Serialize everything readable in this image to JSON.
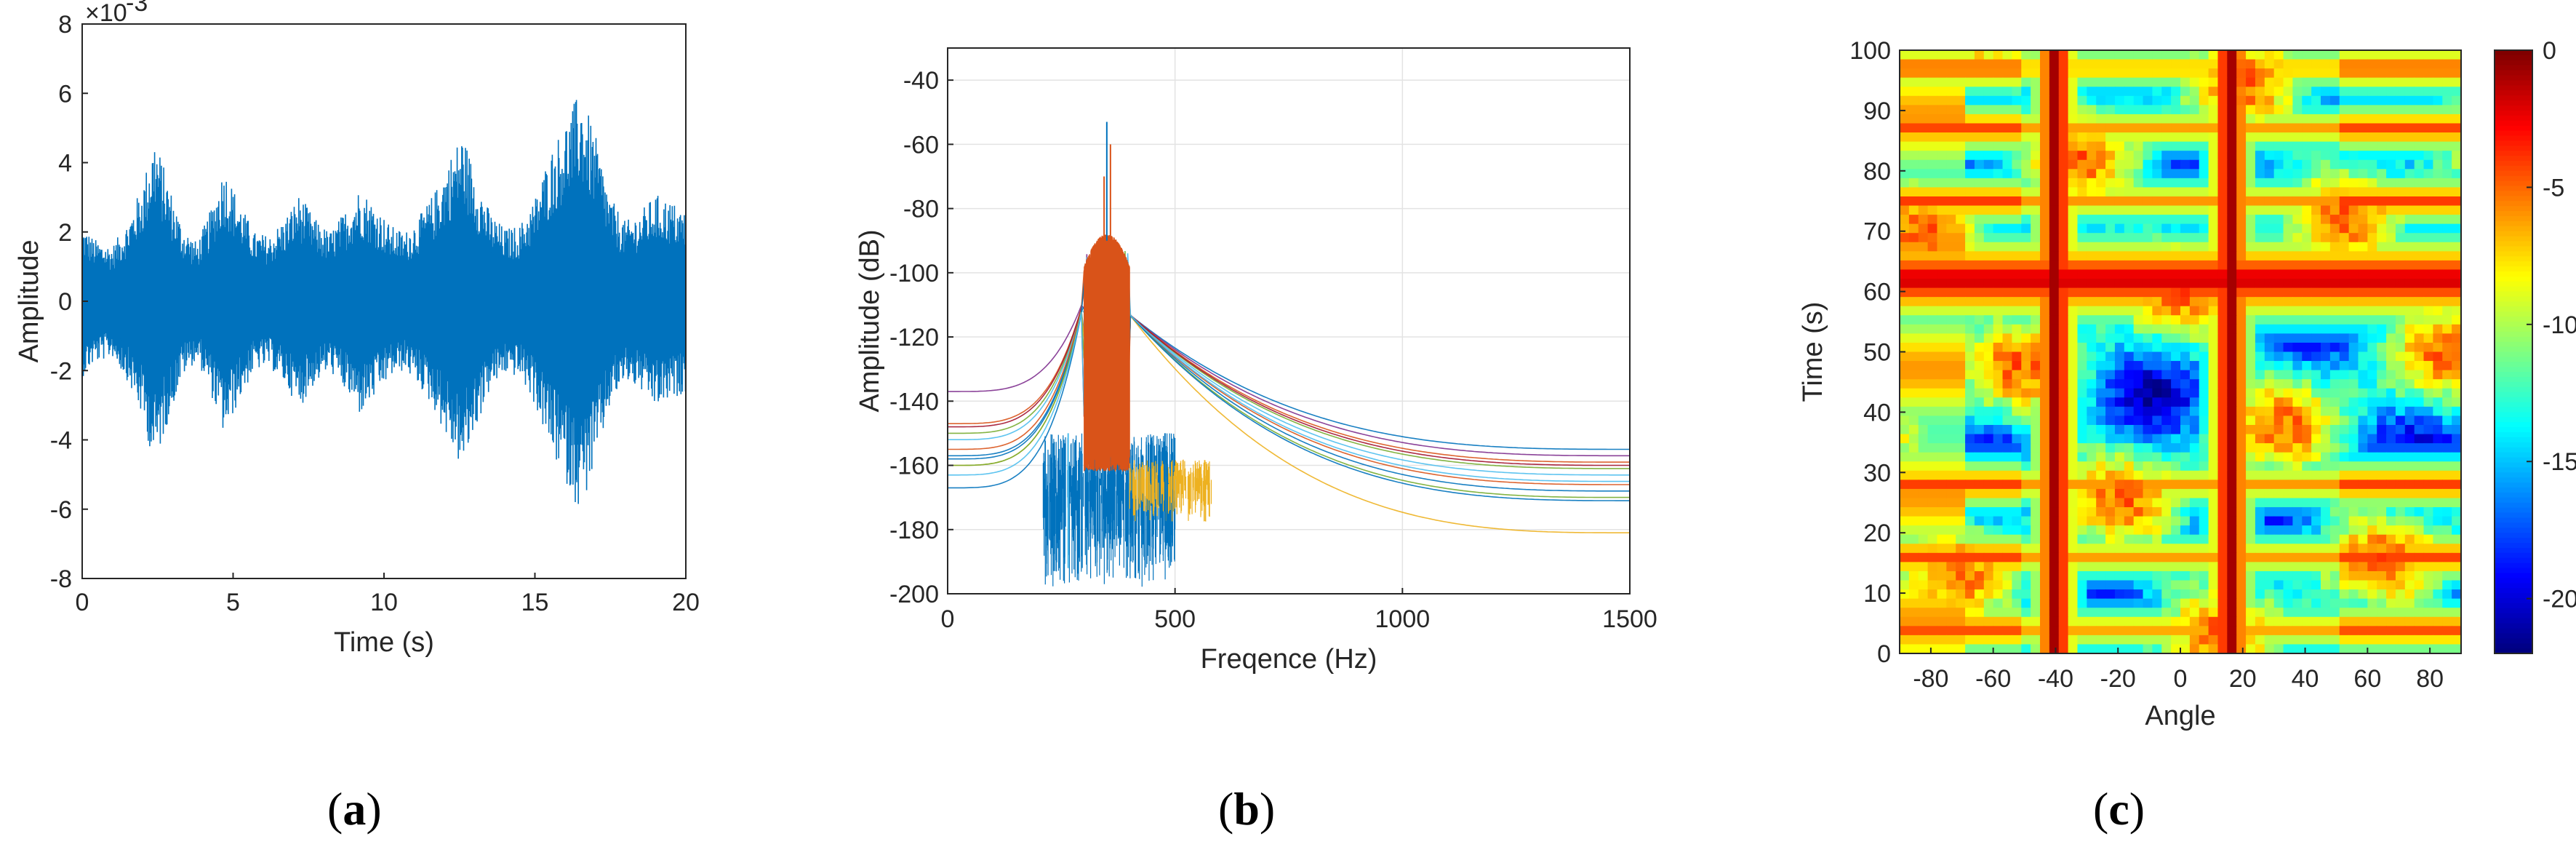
{
  "colors": {
    "signal": "#0072bd",
    "orange": "#d95319",
    "yellow": "#edb120",
    "purple": "#7e2f8e",
    "green": "#77ac30",
    "cyan": "#4dbeee",
    "red": "#a2142f"
  },
  "captions": {
    "a": {
      "open": "(",
      "letter": "a",
      "close": ")"
    },
    "b": {
      "open": "(",
      "letter": "b",
      "close": ")"
    },
    "c": {
      "open": "(",
      "letter": "c",
      "close": ")"
    }
  },
  "chart_data": [
    {
      "type": "line",
      "xlabel": "Time (s)",
      "ylabel": "Amplitude",
      "exponent_label": "×10",
      "exponent_power": "-3",
      "xlim": [
        0,
        20
      ],
      "ylim": [
        -8,
        8
      ],
      "xticks": [
        "0",
        "5",
        "10",
        "15",
        "20"
      ],
      "yticks": [
        "8",
        "6",
        "4",
        "2",
        "0",
        "-2",
        "-4",
        "-6",
        "-8"
      ],
      "grid": false,
      "envelope": {
        "t": [
          0,
          0.4,
          1.0,
          1.5,
          2.0,
          2.4,
          2.8,
          3.3,
          3.8,
          4.2,
          4.7,
          5.2,
          5.7,
          6.2,
          6.7,
          7.2,
          7.7,
          8.2,
          8.7,
          9.2,
          9.7,
          10.2,
          10.7,
          11.2,
          11.7,
          12.2,
          12.6,
          13.0,
          13.5,
          14.0,
          14.5,
          15.0,
          15.5,
          16.0,
          16.5,
          17.0,
          17.5,
          18.0,
          18.5,
          19.0,
          19.5,
          20.0
        ],
        "amp": [
          2.2,
          1.8,
          1.6,
          2.3,
          3.4,
          4.8,
          3.6,
          2.2,
          1.7,
          2.5,
          3.9,
          2.9,
          2.0,
          1.9,
          2.4,
          3.1,
          2.4,
          2.0,
          2.6,
          3.3,
          2.8,
          2.2,
          2.0,
          2.5,
          3.2,
          4.2,
          4.9,
          3.8,
          2.6,
          2.1,
          2.2,
          3.0,
          4.3,
          5.2,
          6.1,
          4.8,
          3.0,
          2.3,
          2.6,
          3.1,
          2.9,
          2.6
        ],
        "units": "1e-3"
      }
    },
    {
      "type": "line",
      "xlabel": "Freqence (Hz)",
      "ylabel": "Amplitude (dB)",
      "xlim": [
        0,
        1500
      ],
      "ylim": [
        -200,
        -30
      ],
      "xticks": [
        "0",
        "500",
        "1000",
        "1500"
      ],
      "yticks": [
        "-40",
        "-60",
        "-80",
        "-100",
        "-120",
        "-140",
        "-160",
        "-180",
        "-200"
      ],
      "grid": true,
      "peak": {
        "freq_hz": 350,
        "max_db": -53,
        "band_top_db": -88,
        "band_hz": [
          300,
          400
        ]
      },
      "series": [
        {
          "color": "#0072bd",
          "start_db": -157,
          "end_db": -155
        },
        {
          "color": "#7e2f8e",
          "start_db": -137,
          "end_db": -157
        },
        {
          "color": "#d95319",
          "start_db": -147,
          "end_db": -159
        },
        {
          "color": "#77ac30",
          "start_db": -150,
          "end_db": -161
        },
        {
          "color": "#4dbeee",
          "start_db": -152,
          "end_db": -163
        },
        {
          "color": "#a2142f",
          "start_db": -148,
          "end_db": -160
        },
        {
          "color": "#0072bd",
          "start_db": -158,
          "end_db": -168
        },
        {
          "color": "#d95319",
          "start_db": -155,
          "end_db": -166
        },
        {
          "color": "#edb120",
          "start_db": -160,
          "end_db": -181
        },
        {
          "color": "#77ac30",
          "start_db": -160,
          "end_db": -170
        },
        {
          "color": "#0072bd",
          "start_db": -167,
          "end_db": -171
        },
        {
          "color": "#4dbeee",
          "start_db": -163,
          "end_db": -165
        }
      ]
    },
    {
      "type": "heatmap",
      "xlabel": "Angle",
      "ylabel": "Time (s)",
      "xlim": [
        -90,
        90
      ],
      "ylim": [
        0,
        100
      ],
      "xticks": [
        "-80",
        "-60",
        "-40",
        "-20",
        "0",
        "20",
        "40",
        "60",
        "80"
      ],
      "yticks": [
        "100",
        "90",
        "80",
        "70",
        "60",
        "50",
        "40",
        "30",
        "20",
        "10",
        "0"
      ],
      "colorbar": {
        "min": -22,
        "max": 0,
        "ticks": [
          "0",
          "-5",
          "-10",
          "-15",
          "-20"
        ],
        "colormap": "jet"
      },
      "strong_angles_deg": [
        -40,
        16
      ],
      "strong_time_s": 62,
      "secondary_times_s": [
        4,
        16,
        28,
        75,
        87,
        97
      ]
    }
  ]
}
